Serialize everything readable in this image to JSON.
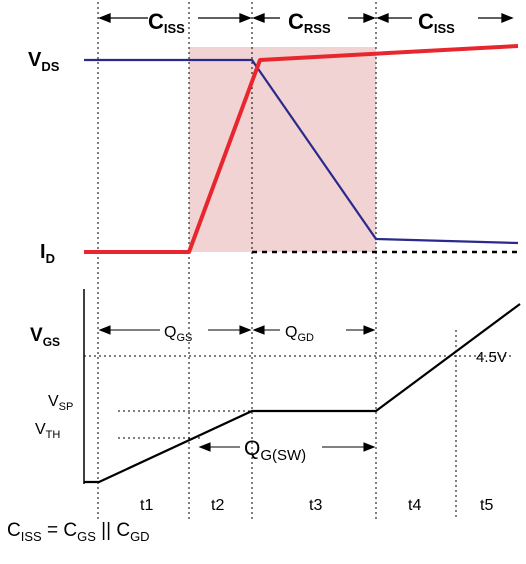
{
  "colors": {
    "vds": "#2a2a8c",
    "id": "#e8262d",
    "shade": "#f2d3d4",
    "ink": "#000000"
  },
  "top": {
    "vds_main": "V",
    "vds_sub": "DS",
    "id_main": "I",
    "id_sub": "D",
    "cap_regions": [
      {
        "main": "C",
        "sub": "ISS"
      },
      {
        "main": "C",
        "sub": "RSS"
      },
      {
        "main": "C",
        "sub": "ISS"
      }
    ]
  },
  "bottom": {
    "vgs_main": "V",
    "vgs_sub": "GS",
    "qgs_main": "Q",
    "qgs_sub": "GS",
    "qgd_main": "Q",
    "qgd_sub": "GD",
    "qgsw_main": "Q",
    "qgsw_sub": "G(SW)",
    "vsp_main": "V",
    "vsp_sub": "SP",
    "vth_main": "V",
    "vth_sub": "TH",
    "level": "4.5V"
  },
  "intervals": [
    "t1",
    "t2",
    "t3",
    "t4",
    "t5"
  ],
  "footer": {
    "lhs_main": "C",
    "lhs_sub": "ISS",
    "op1": " = ",
    "a_main": "C",
    "a_sub": "GS",
    "op2": " || ",
    "b_main": "C",
    "b_sub": "GD"
  }
}
